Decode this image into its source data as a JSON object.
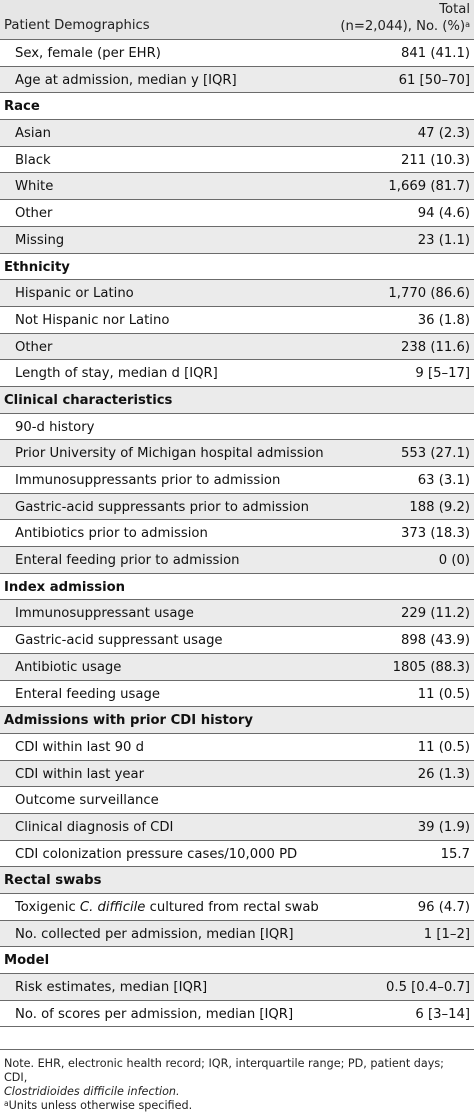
{
  "header": {
    "label": "Patient Demographics",
    "total_line1": "Total",
    "total_line2": "(n=2,044), No. (%)",
    "total_sup": "a"
  },
  "rows": [
    {
      "label": "Sex, female (per EHR)",
      "value": "841 (41.1)",
      "type": "item"
    },
    {
      "label": "Age at admission, median y [IQR]",
      "value": "61 [50–70]",
      "type": "item"
    },
    {
      "label": "Race",
      "value": "",
      "type": "section"
    },
    {
      "label": "Asian",
      "value": "47 (2.3)",
      "type": "item"
    },
    {
      "label": "Black",
      "value": "211 (10.3)",
      "type": "item"
    },
    {
      "label": "White",
      "value": "1,669 (81.7)",
      "type": "item"
    },
    {
      "label": "Other",
      "value": "94 (4.6)",
      "type": "item"
    },
    {
      "label": "Missing",
      "value": "23 (1.1)",
      "type": "item"
    },
    {
      "label": "Ethnicity",
      "value": "",
      "type": "section"
    },
    {
      "label": "Hispanic or Latino",
      "value": "1,770 (86.6)",
      "type": "item"
    },
    {
      "label": "Not Hispanic nor Latino",
      "value": "36 (1.8)",
      "type": "item"
    },
    {
      "label": "Other",
      "value": "238 (11.6)",
      "type": "item"
    },
    {
      "label": "Length of stay, median d [IQR]",
      "value": "9 [5–17]",
      "type": "item"
    },
    {
      "label": "Clinical characteristics",
      "value": "",
      "type": "section"
    },
    {
      "label": "90-d history",
      "value": "",
      "type": "item"
    },
    {
      "label": "Prior University of Michigan hospital admission",
      "value": "553 (27.1)",
      "type": "item"
    },
    {
      "label": "Immunosuppressants prior to admission",
      "value": "63 (3.1)",
      "type": "item"
    },
    {
      "label": "Gastric-acid suppressants prior to admission",
      "value": "188 (9.2)",
      "type": "item"
    },
    {
      "label": "Antibiotics prior to admission",
      "value": "373 (18.3)",
      "type": "item"
    },
    {
      "label": "Enteral feeding prior to admission",
      "value": "0 (0)",
      "type": "item"
    },
    {
      "label": "Index admission",
      "value": "",
      "type": "section"
    },
    {
      "label": "Immunosuppressant usage",
      "value": "229 (11.2)",
      "type": "item"
    },
    {
      "label": "Gastric-acid suppressant usage",
      "value": "898 (43.9)",
      "type": "item"
    },
    {
      "label": "Antibiotic usage",
      "value": "1805 (88.3)",
      "type": "item"
    },
    {
      "label": "Enteral feeding usage",
      "value": "11 (0.5)",
      "type": "item"
    },
    {
      "label": "Admissions with prior CDI history",
      "value": "",
      "type": "section"
    },
    {
      "label": "CDI within last 90 d",
      "value": "11 (0.5)",
      "type": "item"
    },
    {
      "label": "CDI within last year",
      "value": "26 (1.3)",
      "type": "item"
    },
    {
      "label": "Outcome surveillance",
      "value": "",
      "type": "item"
    },
    {
      "label": "Clinical diagnosis of CDI",
      "value": "39 (1.9)",
      "type": "item"
    },
    {
      "label": "CDI colonization pressure cases/10,000 PD",
      "value": "15.7",
      "type": "item"
    },
    {
      "label": "Rectal swabs",
      "value": "",
      "type": "section"
    },
    {
      "label": "Toxigenic C. difficile cultured from rectal swab",
      "value": "96 (4.7)",
      "type": "item"
    },
    {
      "label": "No. collected per admission, median [IQR]",
      "value": "1 [1–2]",
      "type": "item"
    },
    {
      "label": "Model",
      "value": "",
      "type": "section"
    },
    {
      "label": "Risk estimates, median [IQR]",
      "value": "0.5 [0.4–0.7]",
      "type": "item"
    },
    {
      "label": "No. of scores per admission, median [IQR]",
      "value": "6 [3–14]",
      "type": "item"
    }
  ],
  "footnotes": {
    "note_line1": "Note. EHR, electronic health record; IQR, interquartile range; PD, patient days; CDI,",
    "note_line2": "Clostridioides difficile infection.",
    "a_marker": "a",
    "a_text": "Units unless otherwise specified."
  },
  "colors": {
    "header_bg": "#e6e6e6",
    "stripe_bg": "#ebebeb",
    "rule": "#6b6b6b"
  }
}
